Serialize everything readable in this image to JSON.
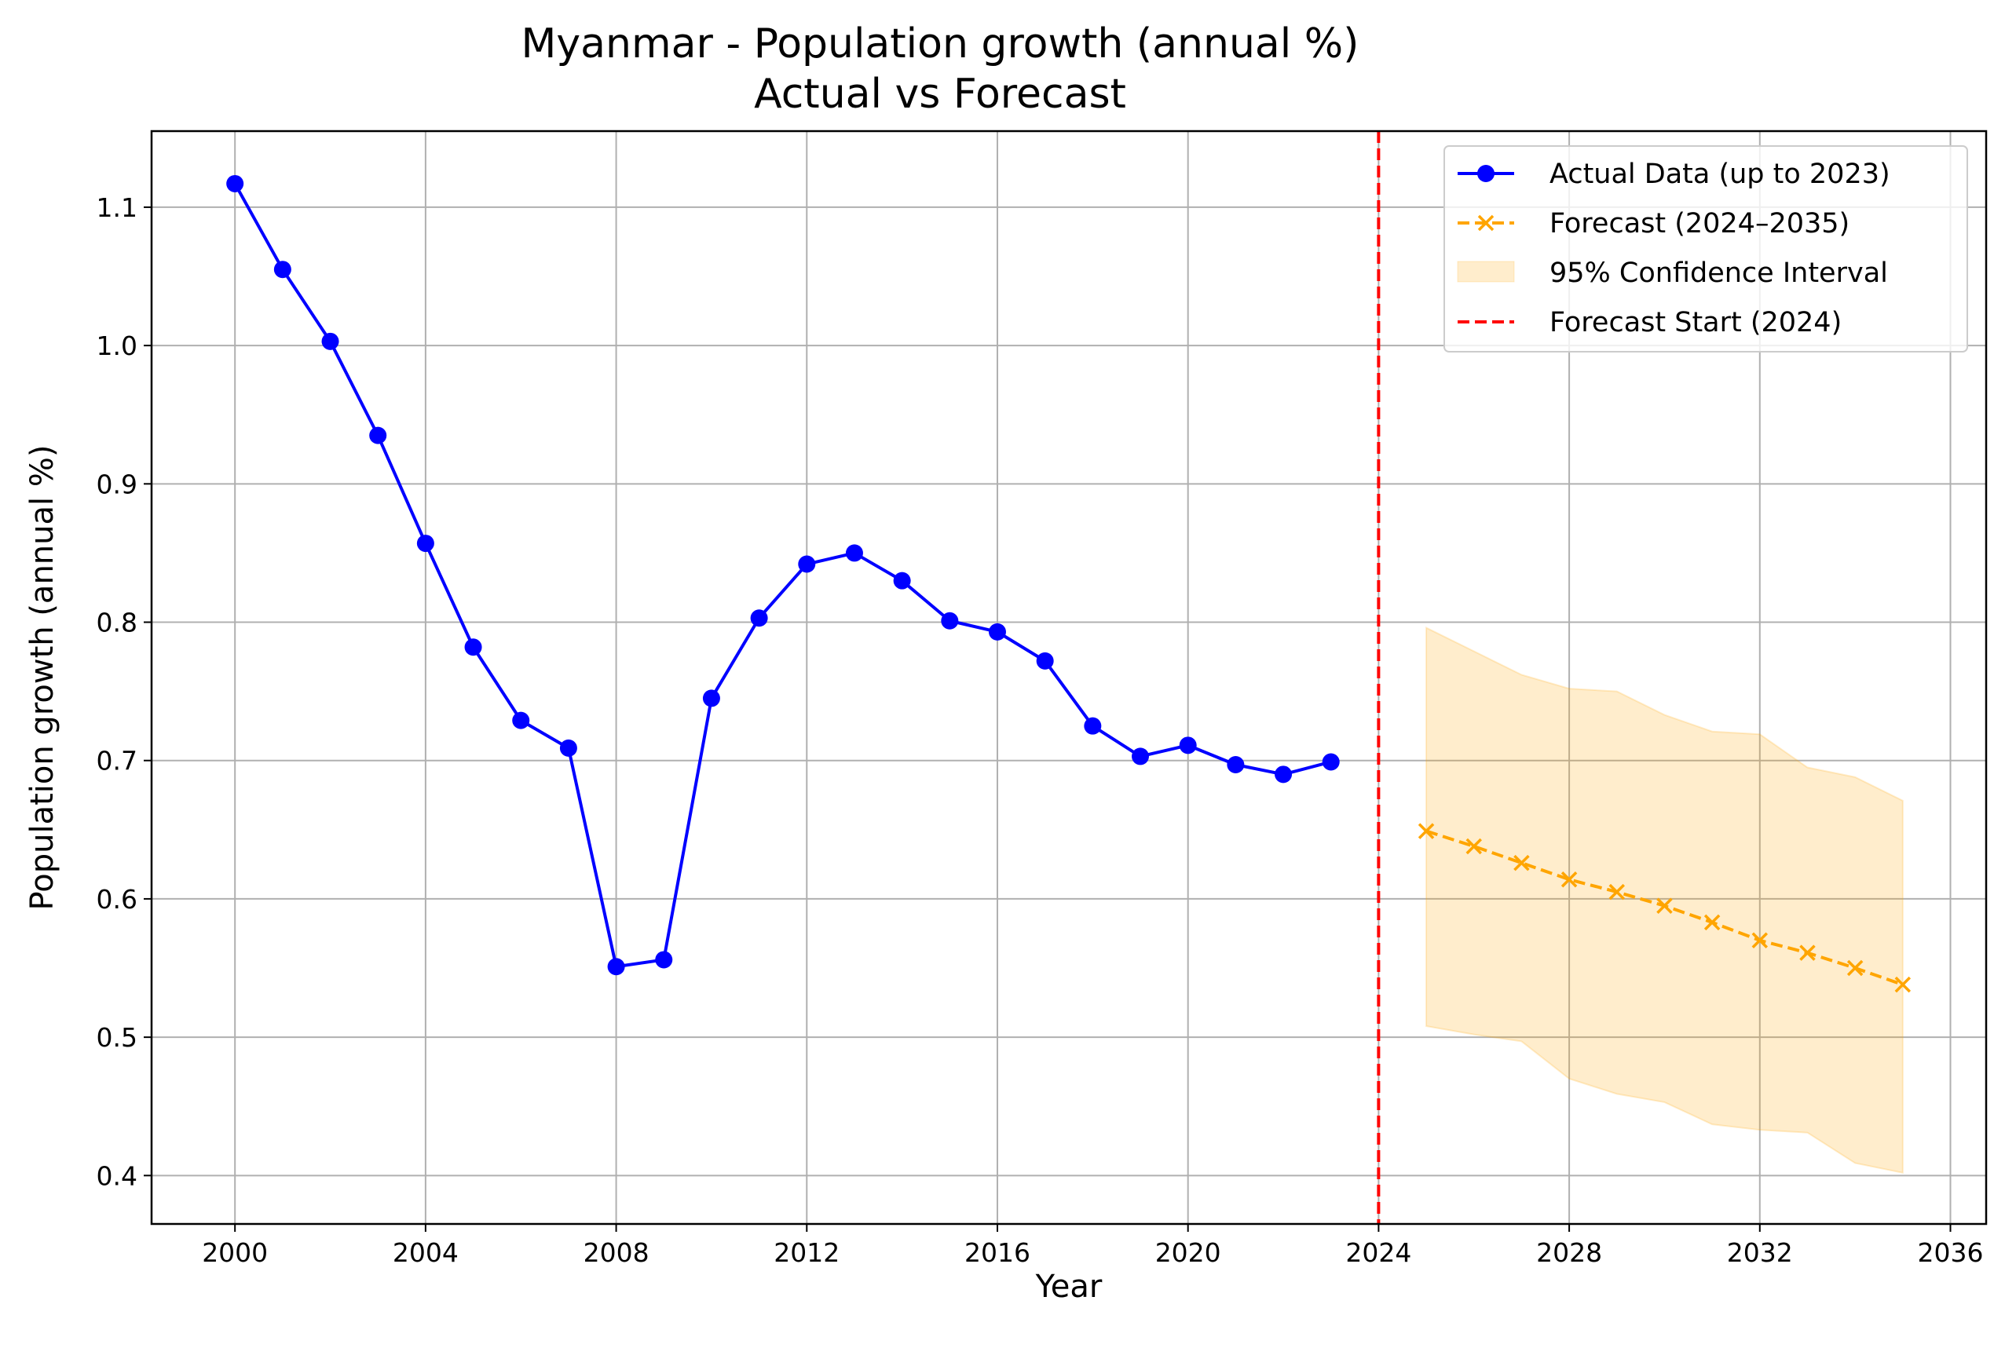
{
  "chart_data": {
    "type": "line",
    "title": "Myanmar - Population growth (annual %)",
    "subtitle": "Actual vs Forecast",
    "xlabel": "Year",
    "ylabel": "Population growth (annual %)",
    "xlim": [
      1998.25,
      2036.75
    ],
    "ylim": [
      0.365,
      1.155
    ],
    "xticks": [
      2000,
      2004,
      2008,
      2012,
      2016,
      2020,
      2024,
      2028,
      2032,
      2036
    ],
    "yticks": [
      0.4,
      0.5,
      0.6,
      0.7,
      0.8,
      0.9,
      1.0,
      1.1
    ],
    "xtick_labels": [
      "2000",
      "2004",
      "2008",
      "2012",
      "2016",
      "2020",
      "2024",
      "2028",
      "2032",
      "2036"
    ],
    "ytick_labels": [
      "0.4",
      "0.5",
      "0.6",
      "0.7",
      "0.8",
      "0.9",
      "1.0",
      "1.1"
    ],
    "grid": true,
    "legend_position": "top-right",
    "series": [
      {
        "name": "Actual Data (up to 2023)",
        "color": "#0000ff",
        "style": "solid line with circle markers",
        "x": [
          2000,
          2001,
          2002,
          2003,
          2004,
          2005,
          2006,
          2007,
          2008,
          2009,
          2010,
          2011,
          2012,
          2013,
          2014,
          2015,
          2016,
          2017,
          2018,
          2019,
          2020,
          2021,
          2022,
          2023
        ],
        "values": [
          1.117,
          1.055,
          1.003,
          0.935,
          0.857,
          0.782,
          0.729,
          0.709,
          0.551,
          0.556,
          0.745,
          0.803,
          0.842,
          0.85,
          0.83,
          0.801,
          0.793,
          0.772,
          0.725,
          0.703,
          0.711,
          0.697,
          0.69,
          0.699
        ]
      },
      {
        "name": "Forecast (2024–2035)",
        "color": "#ffa500",
        "style": "dashed line with x markers",
        "x": [
          2025,
          2026,
          2027,
          2028,
          2029,
          2030,
          2031,
          2032,
          2033,
          2034,
          2035
        ],
        "values": [
          0.649,
          0.638,
          0.626,
          0.614,
          0.605,
          0.595,
          0.583,
          0.57,
          0.561,
          0.55,
          0.538
        ]
      }
    ],
    "confidence_interval": {
      "name": "95% Confidence Interval",
      "color": "#ffa500",
      "x": [
        2025,
        2026,
        2027,
        2028,
        2029,
        2030,
        2031,
        2032,
        2033,
        2034,
        2035
      ],
      "lower": [
        0.508,
        0.502,
        0.497,
        0.47,
        0.459,
        0.453,
        0.437,
        0.433,
        0.431,
        0.409,
        0.402
      ],
      "upper": [
        0.796,
        0.779,
        0.762,
        0.752,
        0.75,
        0.733,
        0.721,
        0.719,
        0.695,
        0.688,
        0.671
      ]
    },
    "vline": {
      "name": "Forecast Start (2024)",
      "x": 2024,
      "color": "#ff0000",
      "style": "dashed"
    }
  }
}
